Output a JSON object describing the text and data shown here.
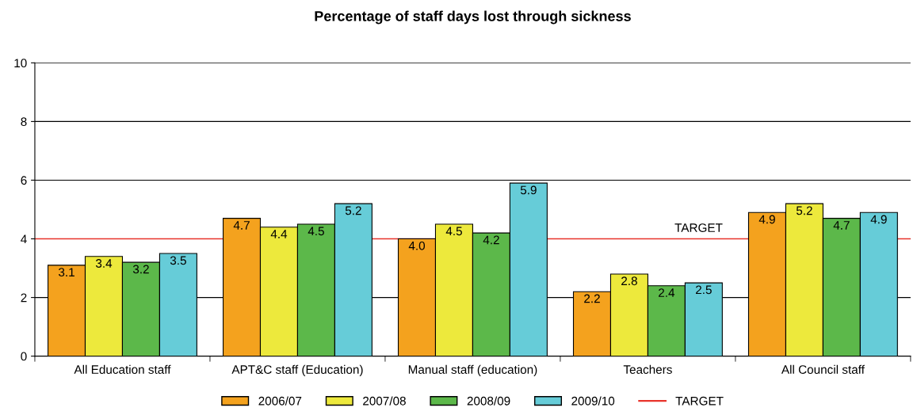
{
  "chart_data": {
    "type": "bar",
    "title": "Percentage of staff days lost through sickness",
    "categories": [
      "All Education staff",
      "APT&C staff (Education)",
      "Manual staff (education)",
      "Teachers",
      "All Council staff"
    ],
    "series": [
      {
        "name": "2006/07",
        "color": "#f4a21e",
        "values": [
          3.1,
          4.7,
          4.0,
          2.2,
          4.9
        ],
        "value_labels": [
          "3.1",
          "4.7",
          "4.0",
          "2.2",
          "4.9"
        ]
      },
      {
        "name": "2007/08",
        "color": "#ede93c",
        "values": [
          3.4,
          4.4,
          4.5,
          2.8,
          5.2
        ],
        "value_labels": [
          "3.4",
          "4.4",
          "4.5",
          "2.8",
          "5.2"
        ]
      },
      {
        "name": "2008/09",
        "color": "#5cb84a",
        "values": [
          3.2,
          4.5,
          4.2,
          2.4,
          4.7
        ],
        "value_labels": [
          "3.2",
          "4.5",
          "4.2",
          "2.4",
          "4.7"
        ]
      },
      {
        "name": "2009/10",
        "color": "#66ccd8",
        "values": [
          3.5,
          5.2,
          5.9,
          2.5,
          4.9
        ],
        "value_labels": [
          "3.5",
          "5.2",
          "5.9",
          "2.5",
          "4.9"
        ]
      }
    ],
    "ylim": [
      0,
      10
    ],
    "yticks": [
      0,
      2,
      4,
      6,
      8,
      10
    ],
    "grid": "y",
    "legend": "bottom",
    "ref_lines": [
      {
        "axis": "y",
        "value": 4,
        "label": "TARGET",
        "color": "#e8342c",
        "line_style": "solid"
      }
    ]
  }
}
